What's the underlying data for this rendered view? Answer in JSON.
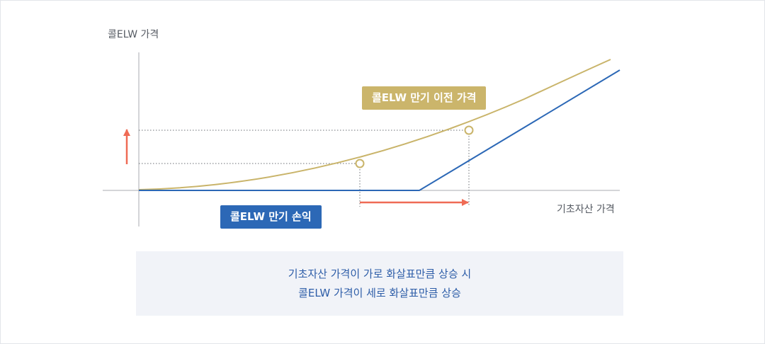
{
  "chart_data": {
    "type": "line",
    "ylabel": "콜ELW 가격",
    "xlabel": "기초자산 가격",
    "series": [
      {
        "name": "콜ELW 만기 이전 가격",
        "color": "#c9b46a"
      },
      {
        "name": "콜ELW 만기 손익",
        "color": "#2c68b6"
      }
    ],
    "points_on_curve": 2,
    "arrows": [
      {
        "direction": "up",
        "color": "#ef6b55"
      },
      {
        "direction": "right",
        "color": "#ef6b55"
      }
    ],
    "grid": false,
    "legend": "inline-labels"
  },
  "caption": {
    "line1": "기초자산 가격이 가로 화살표만큼 상승 시",
    "line2": "콜ELW 가격이 세로 화살표만큼 상승"
  },
  "colors": {
    "gold": "#c9b46a",
    "blue": "#2c68b6",
    "arrow": "#ef6b55",
    "axis": "#a8abb0",
    "caption_bg": "#f1f3f8",
    "caption_text": "#2d5da8"
  }
}
